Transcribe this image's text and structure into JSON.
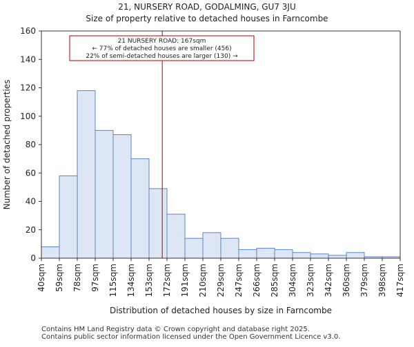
{
  "chart_data": {
    "type": "bar",
    "title_line1": "21, NURSERY ROAD, GODALMING, GU7 3JU",
    "title_line2": "Size of property relative to detached houses in Farncombe",
    "xlabel": "Distribution of detached houses by size in Farncombe",
    "ylabel": "Number of detached properties",
    "ylim": [
      0,
      160
    ],
    "yticks": [
      0,
      20,
      40,
      60,
      80,
      100,
      120,
      140,
      160
    ],
    "bin_edges": [
      40,
      59,
      78,
      97,
      115,
      134,
      153,
      172,
      191,
      210,
      229,
      247,
      266,
      285,
      304,
      323,
      342,
      360,
      379,
      398,
      417
    ],
    "tick_labels": [
      "40sqm",
      "59sqm",
      "78sqm",
      "97sqm",
      "115sqm",
      "134sqm",
      "153sqm",
      "172sqm",
      "191sqm",
      "210sqm",
      "229sqm",
      "247sqm",
      "266sqm",
      "285sqm",
      "304sqm",
      "323sqm",
      "342sqm",
      "360sqm",
      "379sqm",
      "398sqm",
      "417sqm"
    ],
    "values": [
      8,
      58,
      118,
      90,
      87,
      70,
      49,
      31,
      14,
      18,
      14,
      6,
      7,
      6,
      4,
      3,
      2,
      4,
      1,
      1
    ],
    "property_size": 167,
    "annotation": {
      "line1": "21 NURSERY ROAD: 167sqm",
      "line2": "← 77% of detached houses are smaller (456)",
      "line3": "22% of semi-detached houses are larger (130) →"
    },
    "bar_fill": "#dce6f5",
    "bar_stroke": "#5b86c2",
    "marker_color": "#aa0000"
  },
  "footer": {
    "line1": "Contains HM Land Registry data © Crown copyright and database right 2025.",
    "line2": "Contains public sector information licensed under the Open Government Licence v3.0."
  }
}
